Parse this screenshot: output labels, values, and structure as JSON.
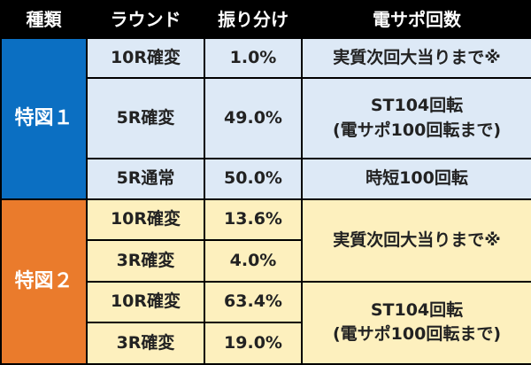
{
  "headers": [
    "種類",
    "ラウンド",
    "振り分け",
    "電サポ回数"
  ],
  "group1": {
    "label": "特図１",
    "rows": [
      {
        "round": "10R確変",
        "share": "1.0%"
      },
      {
        "round": "5R確変",
        "share": "49.0%"
      },
      {
        "round": "5R通常",
        "share": "50.0%"
      }
    ],
    "support": [
      "実質次回大当りまで※",
      "ST104回転\n(電サポ100回転まで)",
      "時短100回転"
    ]
  },
  "group2": {
    "label": "特図２",
    "rows": [
      {
        "round": "10R確変",
        "share": "13.6%"
      },
      {
        "round": "3R確変",
        "share": "4.0%"
      },
      {
        "round": "10R確変",
        "share": "63.4%"
      },
      {
        "round": "3R確変",
        "share": "19.0%"
      }
    ],
    "support": [
      "実質次回大当りまで※",
      "ST104回転\n(電サポ100回転まで)"
    ]
  },
  "colors": {
    "header_bg": "#000000",
    "group1_label": "#0b6fc2",
    "group1_cell": "#dde9f6",
    "group2_label": "#ea7b2c",
    "group2_cell": "#fdf0be"
  }
}
